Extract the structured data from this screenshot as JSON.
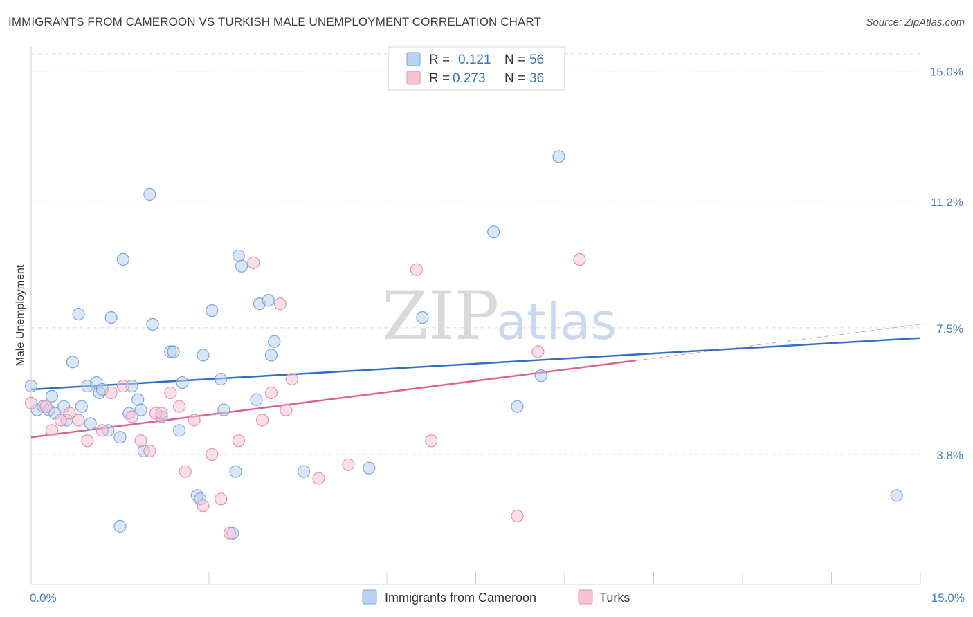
{
  "title": "IMMIGRANTS FROM CAMEROON VS TURKISH MALE UNEMPLOYMENT CORRELATION CHART",
  "source": "Source: ZipAtlas.com",
  "watermark": {
    "zip": "ZIP",
    "atlas": "atlas"
  },
  "colors": {
    "blue_fill": "#b9d2f2",
    "blue_stroke": "#7aa6dd",
    "blue_line": "#2f6fc9",
    "pink_fill": "#f7c3d3",
    "pink_stroke": "#e891ad",
    "pink_line": "#e0608e",
    "grid": "#d9d9d9",
    "tick_text": "#4a7fc9"
  },
  "legend": [
    {
      "r_label": "R =",
      "r_value": "0.121",
      "n_label": "N =",
      "n_value": "56",
      "color": "blue"
    },
    {
      "r_label": "R =",
      "r_value": "0.273",
      "n_label": "N =",
      "n_value": "36",
      "color": "pink"
    }
  ],
  "chart_data": {
    "type": "scatter",
    "ylabel": "Male Unemployment",
    "xlim": [
      0,
      15
    ],
    "ylim": [
      0,
      15.5
    ],
    "x_tick_labels": [
      {
        "v": 0,
        "label": "0.0%"
      },
      {
        "v": 15,
        "label": "15.0%"
      }
    ],
    "y_ticks": [
      {
        "v": 3.8,
        "label": "3.8%"
      },
      {
        "v": 7.5,
        "label": "7.5%"
      },
      {
        "v": 11.2,
        "label": "11.2%"
      },
      {
        "v": 15.0,
        "label": "15.0%"
      }
    ],
    "grid": "horizontal-dashed",
    "series": [
      {
        "name": "Immigrants from Cameroon",
        "color": "blue",
        "trend": {
          "x0": 0,
          "y0": 5.7,
          "x1": 15,
          "y1": 7.2,
          "solid_to": 15
        },
        "points": [
          [
            0.0,
            5.8
          ],
          [
            0.1,
            5.1
          ],
          [
            0.2,
            5.2
          ],
          [
            0.3,
            5.1
          ],
          [
            0.35,
            5.5
          ],
          [
            0.4,
            5.0
          ],
          [
            0.55,
            5.2
          ],
          [
            0.6,
            4.8
          ],
          [
            0.7,
            6.5
          ],
          [
            0.8,
            7.9
          ],
          [
            0.85,
            5.2
          ],
          [
            0.95,
            5.8
          ],
          [
            1.0,
            4.7
          ],
          [
            1.1,
            5.9
          ],
          [
            1.15,
            5.6
          ],
          [
            1.2,
            5.7
          ],
          [
            1.3,
            4.5
          ],
          [
            1.35,
            7.8
          ],
          [
            1.5,
            4.3
          ],
          [
            1.55,
            9.5
          ],
          [
            1.65,
            5.0
          ],
          [
            1.7,
            5.8
          ],
          [
            1.8,
            5.4
          ],
          [
            1.85,
            5.1
          ],
          [
            1.9,
            3.9
          ],
          [
            2.0,
            11.4
          ],
          [
            2.05,
            7.6
          ],
          [
            2.2,
            4.9
          ],
          [
            2.35,
            6.8
          ],
          [
            2.4,
            6.8
          ],
          [
            2.5,
            4.5
          ],
          [
            2.55,
            5.9
          ],
          [
            2.8,
            2.6
          ],
          [
            2.9,
            6.7
          ],
          [
            3.05,
            8.0
          ],
          [
            3.2,
            6.0
          ],
          [
            3.25,
            5.1
          ],
          [
            3.4,
            1.5
          ],
          [
            3.45,
            3.3
          ],
          [
            3.5,
            9.6
          ],
          [
            3.55,
            9.3
          ],
          [
            3.8,
            5.4
          ],
          [
            3.85,
            8.2
          ],
          [
            4.0,
            8.3
          ],
          [
            4.05,
            6.7
          ],
          [
            4.1,
            7.1
          ],
          [
            4.6,
            3.3
          ],
          [
            5.7,
            3.4
          ],
          [
            6.6,
            7.8
          ],
          [
            7.8,
            10.3
          ],
          [
            8.2,
            5.2
          ],
          [
            8.6,
            6.1
          ],
          [
            8.9,
            12.5
          ],
          [
            14.6,
            2.6
          ],
          [
            1.5,
            1.7
          ],
          [
            2.85,
            2.5
          ]
        ]
      },
      {
        "name": "Turks",
        "color": "pink",
        "trend": {
          "x0": 0,
          "y0": 4.3,
          "x1": 15,
          "y1": 7.6,
          "solid_to": 10.2
        },
        "points": [
          [
            0.0,
            5.3
          ],
          [
            0.25,
            5.2
          ],
          [
            0.35,
            4.5
          ],
          [
            0.5,
            4.8
          ],
          [
            0.65,
            5.0
          ],
          [
            0.8,
            4.8
          ],
          [
            0.95,
            4.2
          ],
          [
            1.2,
            4.5
          ],
          [
            1.35,
            5.6
          ],
          [
            1.55,
            5.8
          ],
          [
            1.7,
            4.9
          ],
          [
            1.85,
            4.2
          ],
          [
            2.0,
            3.9
          ],
          [
            2.1,
            5.0
          ],
          [
            2.2,
            5.0
          ],
          [
            2.35,
            5.6
          ],
          [
            2.5,
            5.2
          ],
          [
            2.6,
            3.3
          ],
          [
            2.75,
            4.8
          ],
          [
            2.9,
            2.3
          ],
          [
            3.05,
            3.8
          ],
          [
            3.2,
            2.5
          ],
          [
            3.35,
            1.5
          ],
          [
            3.5,
            4.2
          ],
          [
            3.75,
            9.4
          ],
          [
            3.9,
            4.8
          ],
          [
            4.05,
            5.6
          ],
          [
            4.2,
            8.2
          ],
          [
            4.3,
            5.1
          ],
          [
            4.4,
            6.0
          ],
          [
            4.85,
            3.1
          ],
          [
            5.35,
            3.5
          ],
          [
            6.5,
            9.2
          ],
          [
            6.75,
            4.2
          ],
          [
            8.2,
            2.0
          ],
          [
            8.55,
            6.8
          ],
          [
            9.25,
            9.5
          ]
        ]
      }
    ]
  },
  "bottom_legend": [
    {
      "label": "Immigrants from Cameroon",
      "color": "blue"
    },
    {
      "label": "Turks",
      "color": "pink"
    }
  ]
}
